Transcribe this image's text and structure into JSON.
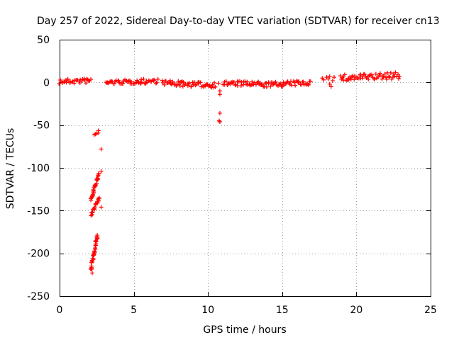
{
  "chart_data": {
    "type": "scatter",
    "title": "Day 257 of 2022, Sidereal Day-to-day VTEC variation (SDTVAR) for receiver cn13",
    "xlabel": "GPS time / hours",
    "ylabel": "SDTVAR / TECUs",
    "xlim": [
      0,
      25
    ],
    "ylim": [
      -250,
      50
    ],
    "xticks": [
      0,
      5,
      10,
      15,
      20,
      25
    ],
    "yticks": [
      50,
      0,
      -50,
      -100,
      -150,
      -200,
      -250
    ],
    "grid": true,
    "marker": "+",
    "color": "#ff0000",
    "series": [
      {
        "name": "SDTVAR",
        "bands": [
          {
            "x0": 0.0,
            "x1": 2.1,
            "y0": 1,
            "y1": 2,
            "thick": 3
          },
          {
            "x0": 3.1,
            "x1": 5.5,
            "y0": 0,
            "y1": 1,
            "thick": 2.5
          },
          {
            "x0": 5.5,
            "x1": 6.6,
            "y0": 1,
            "y1": 2,
            "thick": 3
          },
          {
            "x0": 6.9,
            "x1": 8.3,
            "y0": 0,
            "y1": -2,
            "thick": 3
          },
          {
            "x0": 8.3,
            "x1": 10.5,
            "y0": -2,
            "y1": -3,
            "thick": 3
          },
          {
            "x0": 11.0,
            "x1": 13.5,
            "y0": -1,
            "y1": -2,
            "thick": 3
          },
          {
            "x0": 13.5,
            "x1": 15.0,
            "y0": -3,
            "y1": -2,
            "thick": 3
          },
          {
            "x0": 15.0,
            "x1": 16.9,
            "y0": -2,
            "y1": 0,
            "thick": 3
          },
          {
            "x0": 18.9,
            "x1": 20.3,
            "y0": 5,
            "y1": 6,
            "thick": 4
          },
          {
            "x0": 20.3,
            "x1": 22.9,
            "y0": 6,
            "y1": 8,
            "thick": 4
          },
          {
            "x0": 2.35,
            "x1": 2.65,
            "y0": -62,
            "y1": -57,
            "thick": 1.5
          },
          {
            "x0": 2.1,
            "x1": 2.65,
            "y0": -138,
            "y1": -107,
            "thick": 2
          },
          {
            "x0": 2.1,
            "x1": 2.7,
            "y0": -155,
            "y1": -135,
            "thick": 2
          },
          {
            "x0": 2.1,
            "x1": 2.55,
            "y0": -220,
            "y1": -178,
            "thick": 2
          }
        ],
        "points": [
          {
            "x": 2.8,
            "y": -78
          },
          {
            "x": 2.8,
            "y": -104
          },
          {
            "x": 2.8,
            "y": -146
          },
          {
            "x": 2.2,
            "y": -223
          },
          {
            "x": 10.8,
            "y": -10
          },
          {
            "x": 10.8,
            "y": -14
          },
          {
            "x": 10.8,
            "y": -36
          },
          {
            "x": 10.8,
            "y": -46
          },
          {
            "x": 10.75,
            "y": -45
          },
          {
            "x": 10.7,
            "y": -1
          },
          {
            "x": 17.7,
            "y": 5
          },
          {
            "x": 17.8,
            "y": 3
          },
          {
            "x": 18.0,
            "y": 6
          },
          {
            "x": 18.1,
            "y": 4
          },
          {
            "x": 18.2,
            "y": 7
          },
          {
            "x": 18.2,
            "y": -2
          },
          {
            "x": 18.3,
            "y": -5
          },
          {
            "x": 18.4,
            "y": 2
          },
          {
            "x": 18.5,
            "y": 6
          }
        ]
      }
    ]
  }
}
